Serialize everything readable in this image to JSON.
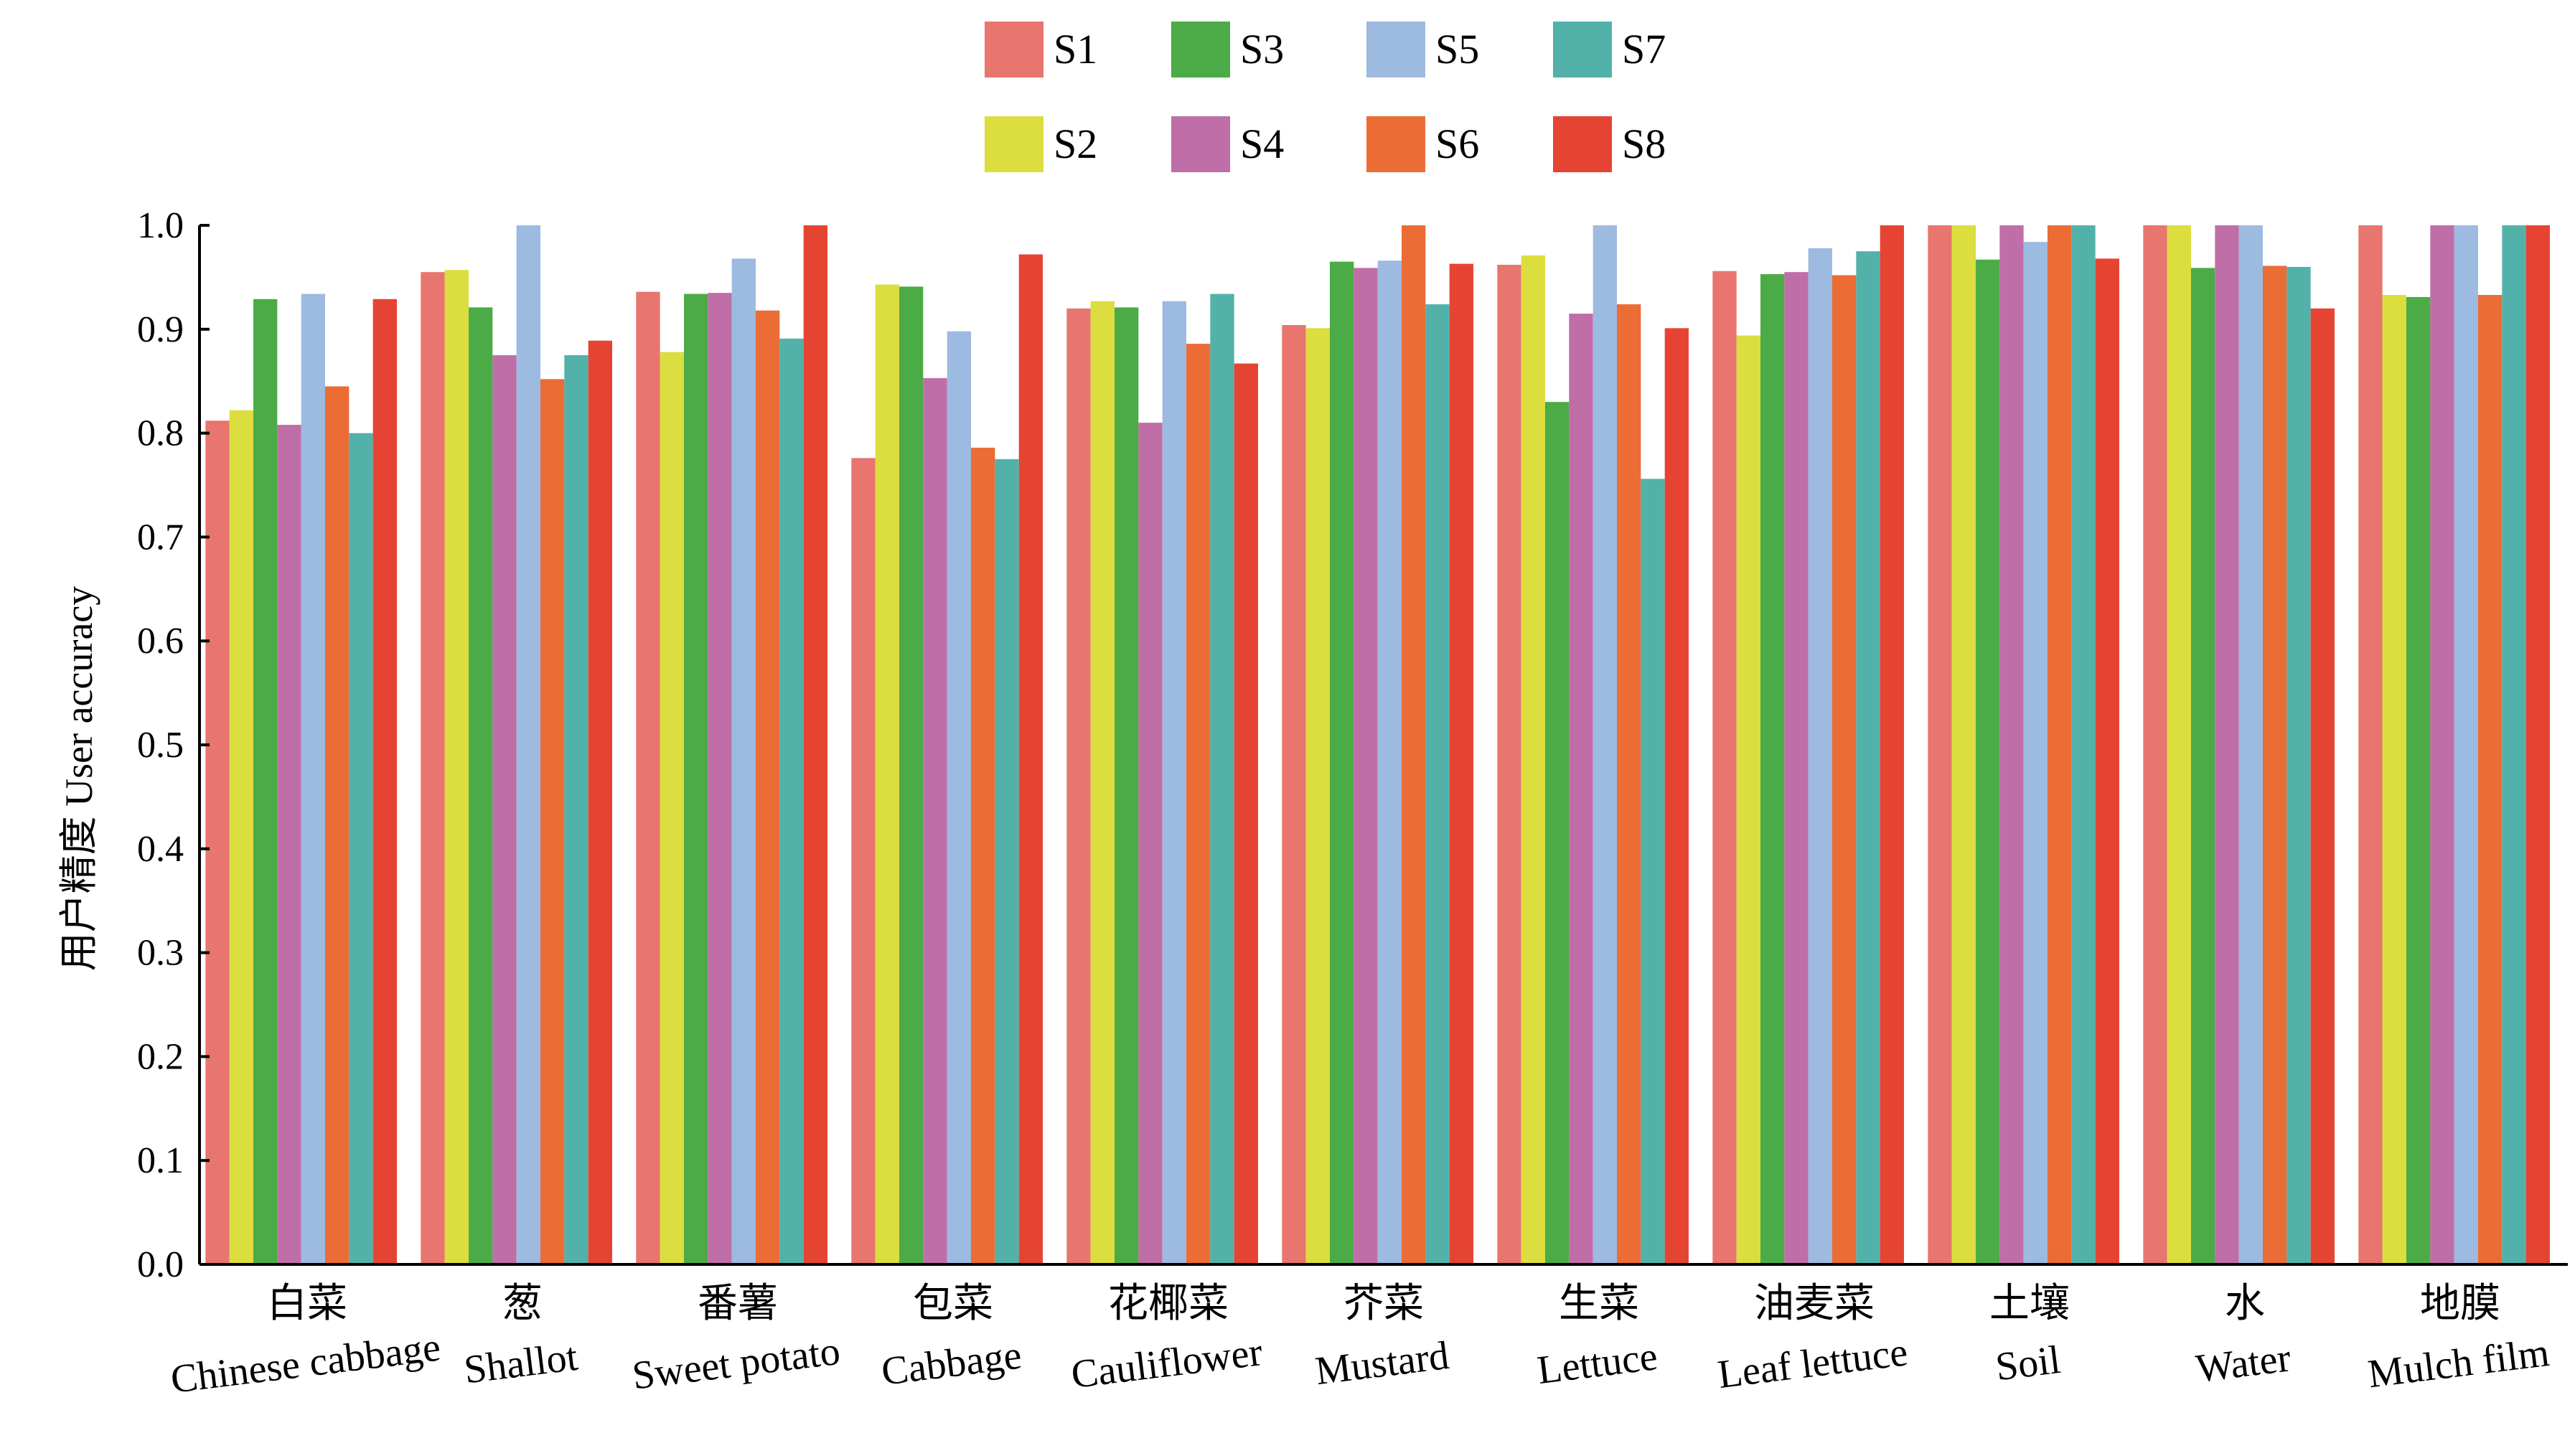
{
  "chart_data": {
    "type": "bar",
    "title": "",
    "xlabel": "",
    "ylabel": "用户精度 User accuracy",
    "ylim": [
      0.0,
      1.0
    ],
    "yticks": [
      "0.0",
      "0.1",
      "0.2",
      "0.3",
      "0.4",
      "0.5",
      "0.6",
      "0.7",
      "0.8",
      "0.9",
      "1.0"
    ],
    "grid": false,
    "legend_position": "top-center",
    "categories": [
      {
        "cn": "白菜",
        "en": "Chinese cabbage"
      },
      {
        "cn": "葱",
        "en": "Shallot"
      },
      {
        "cn": "番薯",
        "en": "Sweet potato"
      },
      {
        "cn": "包菜",
        "en": "Cabbage"
      },
      {
        "cn": "花椰菜",
        "en": "Cauliflower"
      },
      {
        "cn": "芥菜",
        "en": "Mustard"
      },
      {
        "cn": "生菜",
        "en": "Lettuce"
      },
      {
        "cn": "油麦菜",
        "en": "Leaf lettuce"
      },
      {
        "cn": "土壤",
        "en": "Soil"
      },
      {
        "cn": "水",
        "en": "Water"
      },
      {
        "cn": "地膜",
        "en": "Mulch film"
      }
    ],
    "series": [
      {
        "name": "S1",
        "color": "#E8756E",
        "values": [
          0.812,
          0.955,
          0.936,
          0.776,
          0.92,
          0.904,
          0.962,
          0.956,
          1.0,
          1.0,
          1.0
        ]
      },
      {
        "name": "S2",
        "color": "#DCDD3F",
        "values": [
          0.822,
          0.957,
          0.878,
          0.943,
          0.927,
          0.901,
          0.971,
          0.894,
          1.0,
          1.0,
          0.933
        ]
      },
      {
        "name": "S3",
        "color": "#4BAB46",
        "values": [
          0.929,
          0.921,
          0.934,
          0.941,
          0.921,
          0.965,
          0.83,
          0.953,
          0.967,
          0.959,
          0.931
        ]
      },
      {
        "name": "S4",
        "color": "#C06EA8",
        "values": [
          0.808,
          0.875,
          0.935,
          0.853,
          0.81,
          0.959,
          0.915,
          0.955,
          1.0,
          1.0,
          1.0
        ]
      },
      {
        "name": "S5",
        "color": "#9DBAE0",
        "values": [
          0.934,
          1.0,
          0.968,
          0.898,
          0.927,
          0.966,
          1.0,
          0.978,
          0.984,
          1.0,
          1.0
        ]
      },
      {
        "name": "S6",
        "color": "#EC6C36",
        "values": [
          0.845,
          0.852,
          0.918,
          0.786,
          0.886,
          1.0,
          0.924,
          0.952,
          1.0,
          0.961,
          0.933
        ]
      },
      {
        "name": "S7",
        "color": "#52B2AA",
        "values": [
          0.8,
          0.875,
          0.891,
          0.775,
          0.934,
          0.924,
          0.756,
          0.975,
          1.0,
          0.96,
          1.0
        ]
      },
      {
        "name": "S8",
        "color": "#E64433",
        "values": [
          0.929,
          0.889,
          1.0,
          0.972,
          0.867,
          0.963,
          0.901,
          1.0,
          0.968,
          0.92,
          1.0
        ]
      }
    ]
  }
}
